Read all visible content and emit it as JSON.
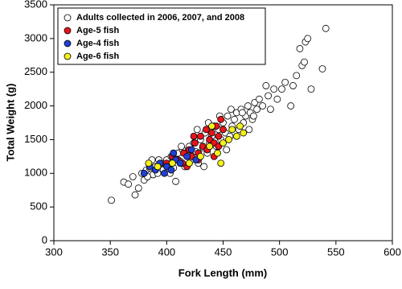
{
  "chart_data": {
    "type": "scatter",
    "xlabel": "Fork Length (mm)",
    "ylabel": "Total Weight (g)",
    "xlim": [
      300,
      600
    ],
    "xticks": [
      300,
      350,
      400,
      450,
      500,
      550,
      600
    ],
    "ylim": [
      0,
      3500
    ],
    "yticks": [
      0,
      500,
      1000,
      1500,
      2000,
      2500,
      3000,
      3500
    ],
    "legend": "upper left",
    "series": [
      {
        "name": "Adults collected in 2006, 2007, and 2008",
        "color": "#ffffff",
        "x": [
          351,
          362,
          366,
          370,
          372,
          375,
          378,
          380,
          382,
          385,
          388,
          390,
          392,
          395,
          397,
          400,
          402,
          404,
          406,
          408,
          410,
          412,
          414,
          416,
          418,
          420,
          422,
          424,
          426,
          428,
          430,
          432,
          434,
          436,
          438,
          440,
          442,
          444,
          446,
          448,
          450,
          452,
          454,
          456,
          458,
          460,
          462,
          464,
          466,
          468,
          470,
          472,
          474,
          476,
          478,
          480,
          482,
          485,
          488,
          490,
          492,
          495,
          498,
          502,
          505,
          510,
          512,
          515,
          518,
          520,
          522,
          523,
          525,
          528,
          538,
          541,
          383,
          393,
          413,
          427,
          437,
          447,
          457,
          467,
          477,
          387,
          403,
          433,
          453,
          473
        ],
        "values": [
          600,
          870,
          840,
          950,
          680,
          780,
          1000,
          900,
          1050,
          1080,
          980,
          1100,
          1000,
          1150,
          1050,
          1200,
          1120,
          1250,
          1080,
          880,
          1300,
          1180,
          1350,
          1100,
          1280,
          1400,
          1200,
          1450,
          1320,
          1150,
          1500,
          1380,
          1600,
          1300,
          1450,
          1550,
          1700,
          1400,
          1650,
          1500,
          1750,
          1600,
          1850,
          1550,
          1700,
          1800,
          1900,
          1650,
          1950,
          1750,
          1850,
          2000,
          1900,
          1800,
          2050,
          1950,
          2100,
          2000,
          2300,
          2150,
          1950,
          2250,
          2100,
          2250,
          2350,
          2000,
          2300,
          2450,
          2850,
          2600,
          2650,
          2950,
          3000,
          2250,
          2550,
          3150,
          950,
          1200,
          1400,
          1650,
          1750,
          1850,
          1950,
          1900,
          1850,
          1200,
          1000,
          1100,
          1350,
          1650
        ]
      },
      {
        "name": "Age-5 fish",
        "color": "#e8141c",
        "x": [
          400,
          405,
          410,
          415,
          418,
          420,
          422,
          425,
          428,
          430,
          432,
          435,
          438,
          440,
          442,
          444,
          446,
          448,
          450,
          428,
          436,
          414,
          424,
          442,
          446
        ],
        "values": [
          1150,
          1250,
          1200,
          1300,
          1100,
          1350,
          1250,
          1450,
          1300,
          1550,
          1400,
          1650,
          1500,
          1600,
          1450,
          1700,
          1550,
          1800,
          1650,
          1200,
          1350,
          1150,
          1550,
          1250,
          1400
        ]
      },
      {
        "name": "Age-4 fish",
        "color": "#1f3fd6",
        "x": [
          380,
          385,
          390,
          394,
          398,
          400,
          404,
          408,
          412,
          418,
          422,
          426,
          406
        ],
        "values": [
          1000,
          1100,
          1050,
          1150,
          1000,
          1100,
          1050,
          1200,
          1150,
          1250,
          1350,
          1200,
          1300
        ]
      },
      {
        "name": "Age-6 fish",
        "color": "#f4f01c",
        "x": [
          384,
          392,
          405,
          420,
          430,
          438,
          445,
          450,
          455,
          458,
          462,
          465,
          448,
          440,
          468
        ],
        "values": [
          1150,
          1100,
          1150,
          1150,
          1250,
          1400,
          1300,
          1450,
          1500,
          1650,
          1550,
          1700,
          1150,
          1700,
          1600
        ]
      }
    ]
  }
}
